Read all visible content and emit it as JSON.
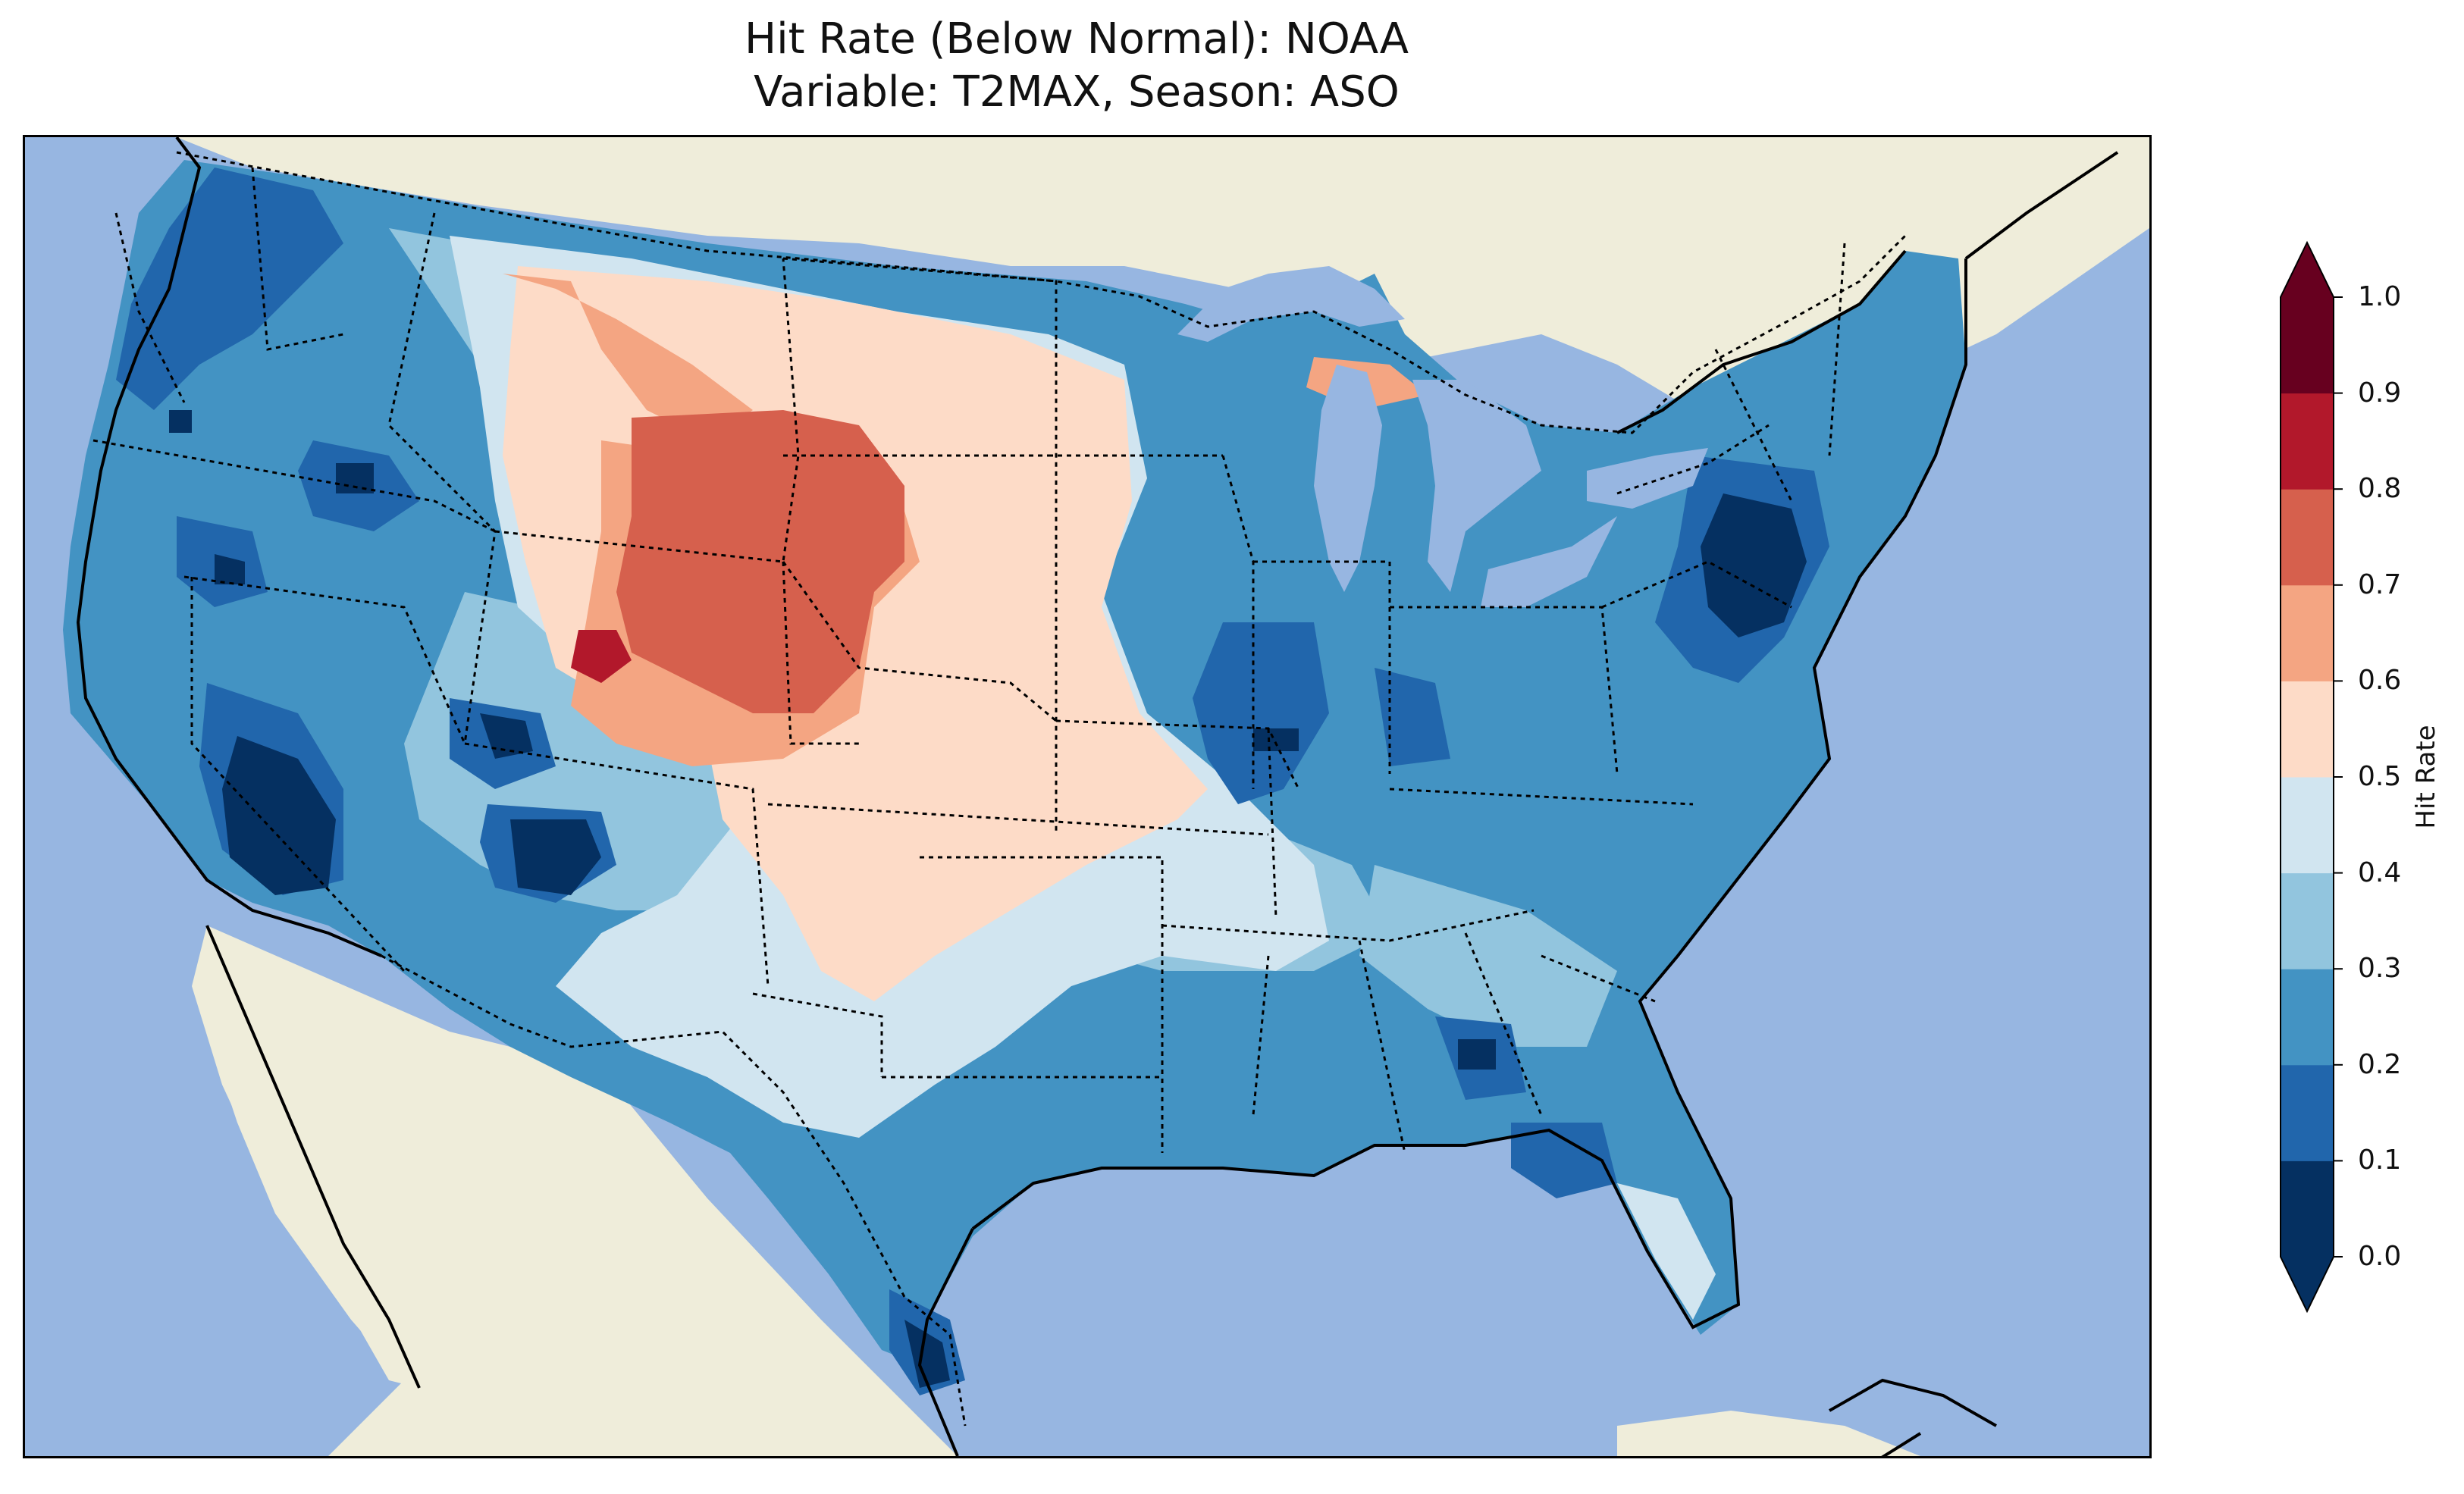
{
  "title_line1": "Hit Rate (Below Normal): NOAA",
  "title_line2": "Variable: T2MAX, Season: ASO",
  "colorbar": {
    "label": "Hit Rate",
    "ticks": [
      "0.0",
      "0.1",
      "0.2",
      "0.3",
      "0.4",
      "0.5",
      "0.6",
      "0.7",
      "0.8",
      "0.9",
      "1.0"
    ],
    "colors": [
      "#053061",
      "#2166ac",
      "#4393c3",
      "#92c5de",
      "#d1e5f0",
      "#fddbc7",
      "#f4a582",
      "#d6604d",
      "#b2182b",
      "#67001f"
    ],
    "extend": "both"
  },
  "map": {
    "ocean_color": "#97b6e1",
    "land_color": "#efedda",
    "region": "Contiguous United States"
  }
}
